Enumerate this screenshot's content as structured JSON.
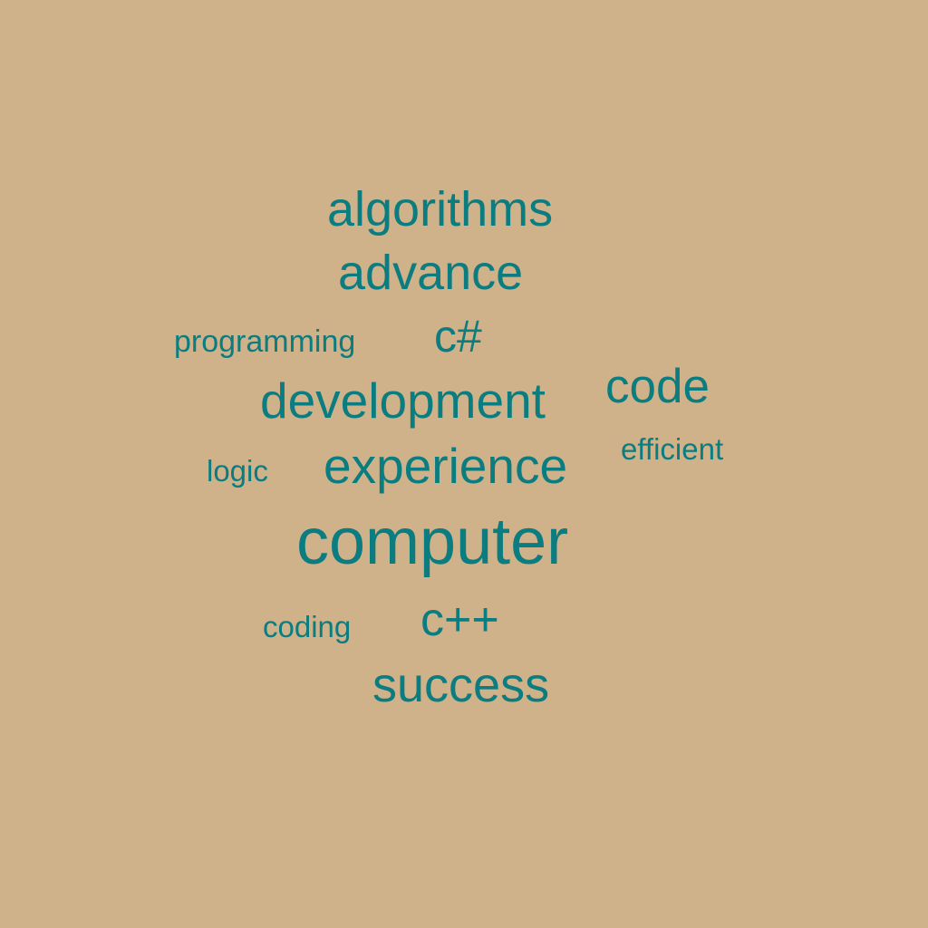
{
  "colors": {
    "background": "#CFB28A",
    "word": "#0B7C7F"
  },
  "words": {
    "algorithms": "algorithms",
    "advance": "advance",
    "programming": "programming",
    "csharp": "c#",
    "development": "development",
    "code": "code",
    "logic": "logic",
    "experience": "experience",
    "efficient": "efficient",
    "computer": "computer",
    "coding": "coding",
    "cplusplus": "c++",
    "success": "success"
  }
}
